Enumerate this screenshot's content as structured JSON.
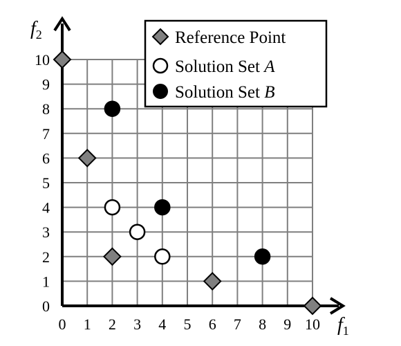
{
  "chart_data": {
    "type": "scatter",
    "xlabel": {
      "base": "f",
      "sub": "1"
    },
    "ylabel": {
      "base": "f",
      "sub": "2"
    },
    "xlim": [
      0,
      10
    ],
    "ylim": [
      0,
      10
    ],
    "x_ticks": [
      "0",
      "1",
      "2",
      "3",
      "4",
      "5",
      "6",
      "7",
      "8",
      "9",
      "10"
    ],
    "y_ticks": [
      "0",
      "1",
      "2",
      "3",
      "4",
      "5",
      "6",
      "7",
      "8",
      "9",
      "10"
    ],
    "grid": true,
    "legend_position": "top-right",
    "legend": [
      {
        "label": "Reference Point",
        "italic_suffix": ""
      },
      {
        "label": "Solution Set ",
        "italic_suffix": "A"
      },
      {
        "label": "Solution Set ",
        "italic_suffix": "B"
      }
    ],
    "series": [
      {
        "name": "Reference Point",
        "marker": "diamond",
        "fill": "#808080",
        "points": [
          [
            0,
            10
          ],
          [
            1,
            6
          ],
          [
            2,
            2
          ],
          [
            6,
            1
          ],
          [
            10,
            0
          ]
        ]
      },
      {
        "name": "Solution Set A",
        "marker": "circle-open",
        "fill": "#ffffff",
        "points": [
          [
            2,
            4
          ],
          [
            3,
            3
          ],
          [
            4,
            2
          ]
        ]
      },
      {
        "name": "Solution Set B",
        "marker": "circle-filled",
        "fill": "#000000",
        "points": [
          [
            2,
            8
          ],
          [
            4,
            4
          ],
          [
            8,
            2
          ]
        ]
      }
    ]
  }
}
